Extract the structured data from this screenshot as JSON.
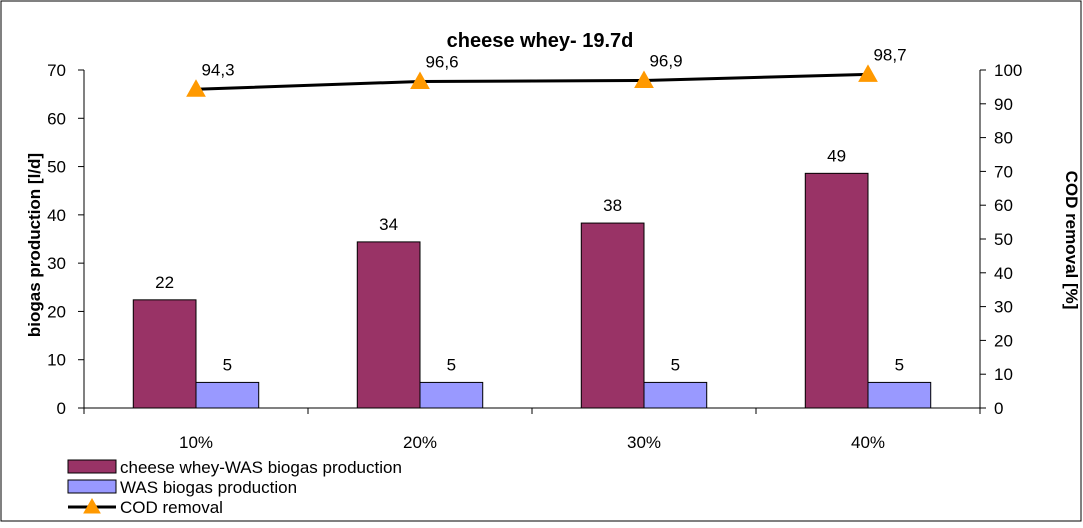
{
  "chart_data": {
    "type": "bar",
    "title": "cheese whey- 19.7d",
    "categories": [
      "10%",
      "20%",
      "30%",
      "40%"
    ],
    "ylabel": "biogas production [l/d]",
    "y2label": "COD removal [%]",
    "ylim": [
      0,
      70
    ],
    "y2lim": [
      0,
      100
    ],
    "yticks": [
      "0",
      "10",
      "20",
      "30",
      "40",
      "50",
      "60",
      "70"
    ],
    "y2ticks": [
      "0",
      "10",
      "20",
      "30",
      "40",
      "50",
      "60",
      "70",
      "80",
      "90",
      "100"
    ],
    "series": [
      {
        "name": "cheese whey-WAS biogas production",
        "type": "bar",
        "axis": "left",
        "color": "#993366",
        "values": [
          22.4,
          34.4,
          38.3,
          48.6
        ],
        "labels": [
          "22",
          "34",
          "38",
          "49"
        ]
      },
      {
        "name": "WAS biogas production",
        "type": "bar",
        "axis": "left",
        "color": "#9999FF",
        "values": [
          5.3,
          5.3,
          5.3,
          5.3
        ],
        "labels": [
          "5",
          "5",
          "5",
          "5"
        ]
      },
      {
        "name": "COD removal",
        "type": "line",
        "axis": "right",
        "color": "#000000",
        "marker_color": "#FF9900",
        "values": [
          94.3,
          96.6,
          96.9,
          98.7
        ],
        "labels": [
          "94,3",
          "96,6",
          "96,9",
          "98,7"
        ]
      }
    ],
    "grid": false,
    "legend_position": "bottom-left"
  }
}
